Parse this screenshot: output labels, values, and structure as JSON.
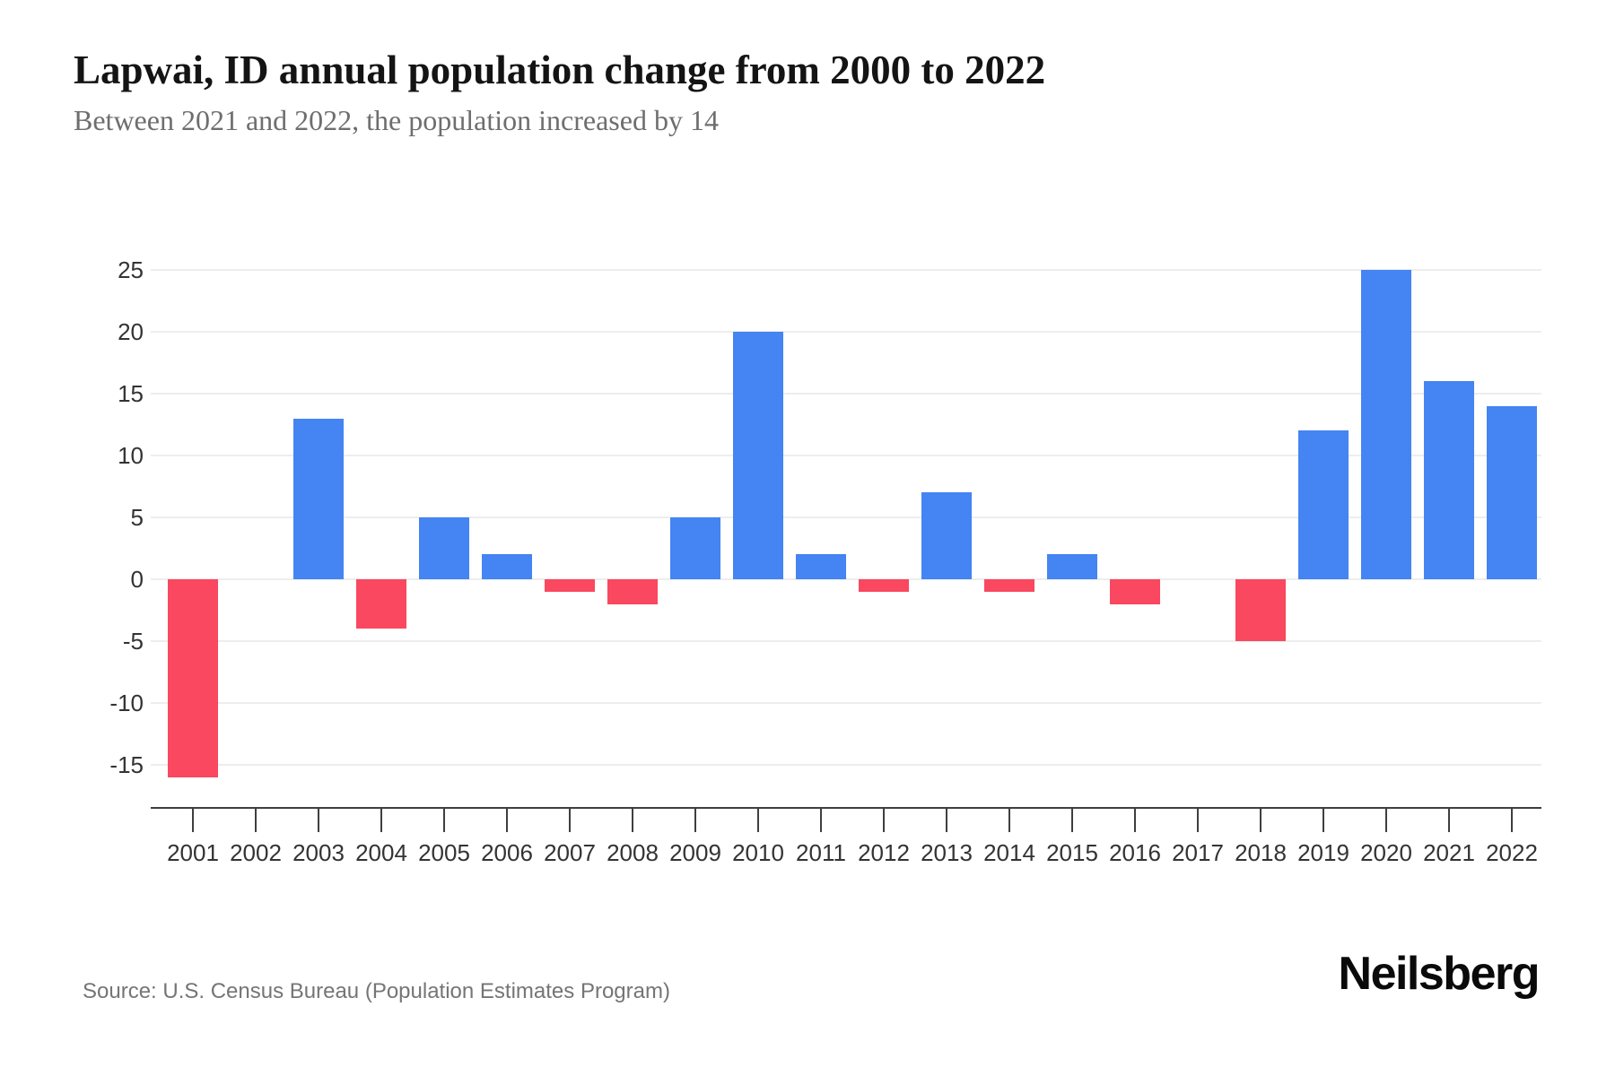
{
  "chart_data": {
    "type": "bar",
    "title": "Lapwai, ID annual population change from 2000 to 2022",
    "subtitle": "Between 2021 and 2022, the population increased by 14",
    "categories": [
      "2001",
      "2002",
      "2003",
      "2004",
      "2005",
      "2006",
      "2007",
      "2008",
      "2009",
      "2010",
      "2011",
      "2012",
      "2013",
      "2014",
      "2015",
      "2016",
      "2017",
      "2018",
      "2019",
      "2020",
      "2021",
      "2022"
    ],
    "values": [
      -16,
      0,
      13,
      -4,
      5,
      2,
      -1,
      -2,
      5,
      20,
      2,
      -1,
      7,
      -1,
      2,
      -2,
      0,
      -5,
      12,
      25,
      16,
      14
    ],
    "xlabel": "",
    "ylabel": "",
    "yticks": [
      25,
      20,
      15,
      10,
      5,
      0,
      -5,
      -10,
      -15
    ],
    "ylim": [
      -18,
      27
    ],
    "grid": "horizontal",
    "legend": "none",
    "colors": {
      "positive": "#4484f3",
      "negative": "#f9485f"
    }
  },
  "footer": {
    "source": "Source: U.S. Census Bureau (Population Estimates Program)",
    "brand": "Neilsberg"
  }
}
